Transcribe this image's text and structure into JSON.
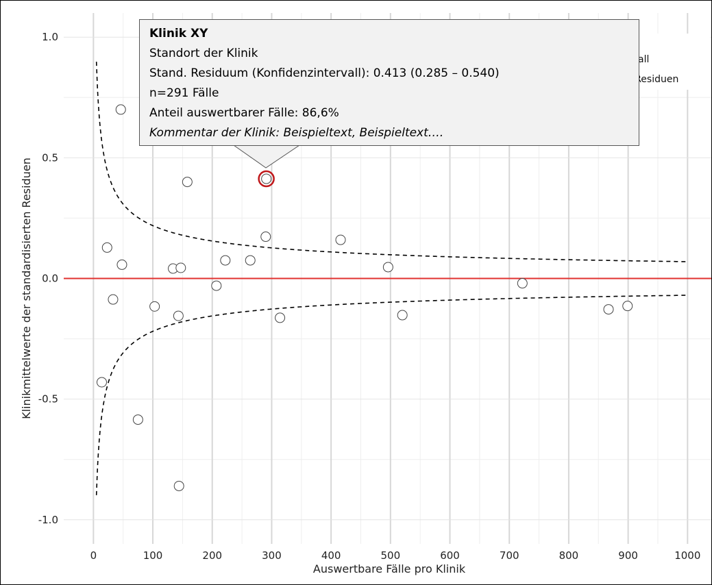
{
  "chart_data": {
    "type": "scatter",
    "xlabel": "Auswertbare Fälle pro Klinik",
    "ylabel": "Klinikmittelwerte der standardisierten Residuen",
    "xlim": [
      -50,
      1040
    ],
    "ylim": [
      -1.1,
      1.1
    ],
    "x_ticks": [
      0,
      100,
      200,
      300,
      400,
      500,
      600,
      700,
      800,
      900,
      1000
    ],
    "y_ticks": [
      -1.0,
      -0.5,
      0.0,
      0.5,
      1.0
    ],
    "x_tick_labels": [
      "0",
      "100",
      "200",
      "300",
      "400",
      "500",
      "600",
      "700",
      "800",
      "900",
      "1000"
    ],
    "y_tick_labels": [
      "-1.0",
      "-0.5",
      "0.0",
      "0.5",
      "1.0"
    ],
    "grid": true,
    "reference_line": {
      "y": 0.0,
      "color": "#e0312f"
    },
    "confidence_band": {
      "style": "dashed",
      "from_x": 5,
      "to_x": 1000,
      "color": "#000000"
    },
    "points": [
      {
        "x": 14,
        "y": -0.43
      },
      {
        "x": 23,
        "y": 0.128
      },
      {
        "x": 33,
        "y": -0.087
      },
      {
        "x": 46,
        "y": 0.7
      },
      {
        "x": 48,
        "y": 0.057
      },
      {
        "x": 75,
        "y": -0.585
      },
      {
        "x": 103,
        "y": -0.116
      },
      {
        "x": 134,
        "y": 0.041
      },
      {
        "x": 143,
        "y": -0.155
      },
      {
        "x": 144,
        "y": -0.86
      },
      {
        "x": 147,
        "y": 0.044
      },
      {
        "x": 158,
        "y": 0.4
      },
      {
        "x": 207,
        "y": -0.03
      },
      {
        "x": 222,
        "y": 0.075
      },
      {
        "x": 264,
        "y": 0.075
      },
      {
        "x": 290,
        "y": 0.173
      },
      {
        "x": 291,
        "y": 0.413,
        "highlight": true
      },
      {
        "x": 314,
        "y": -0.163
      },
      {
        "x": 416,
        "y": 0.16
      },
      {
        "x": 496,
        "y": 0.047
      },
      {
        "x": 520,
        "y": -0.152
      },
      {
        "x": 722,
        "y": -0.02
      },
      {
        "x": 867,
        "y": -0.128
      },
      {
        "x": 899,
        "y": -0.114
      }
    ],
    "highlight_color": "#c0181b",
    "legend_fragments": [
      "all",
      "r Residuen"
    ]
  },
  "tooltip": {
    "title": "Klinik XY",
    "line1": "Standort der Klinik",
    "line2": "Stand. Residuum (Konfidenzintervall): 0.413 (0.285 – 0.540)",
    "line3": "n=291 Fälle",
    "line4": "Anteil auswertbarer Fälle: 86,6%",
    "line5": "Kommentar der Klinik: Beispieltext, Beispieltext…."
  }
}
